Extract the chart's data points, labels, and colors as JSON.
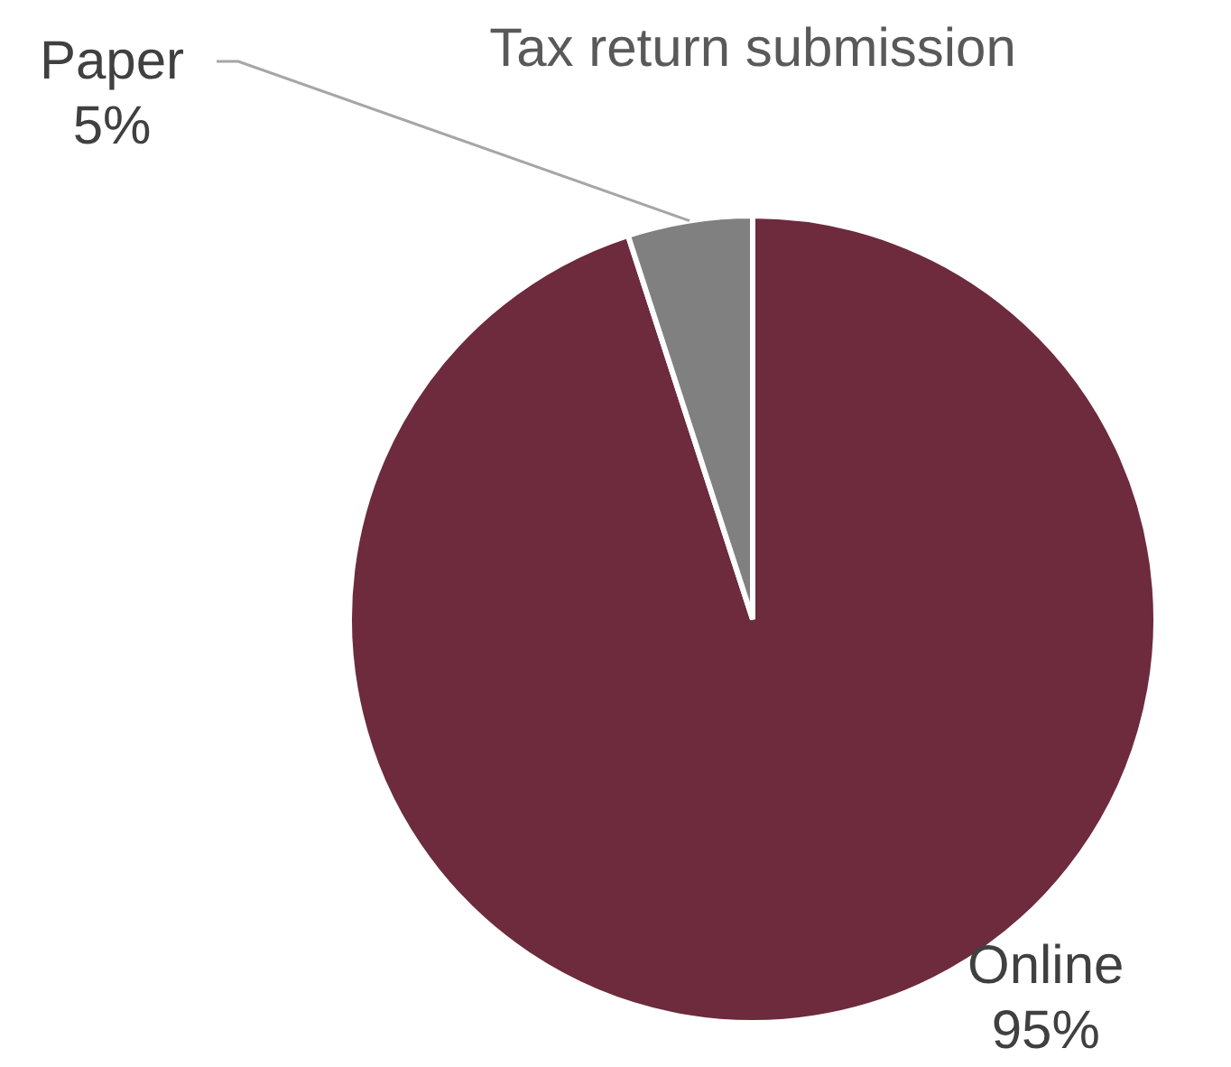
{
  "chart_data": {
    "type": "pie",
    "title": "Tax return submission",
    "categories": [
      "Online",
      "Paper"
    ],
    "values": [
      95,
      5
    ],
    "colors": [
      "#6d2b3d",
      "#808080"
    ],
    "value_labels": [
      "95%",
      "5%"
    ]
  }
}
